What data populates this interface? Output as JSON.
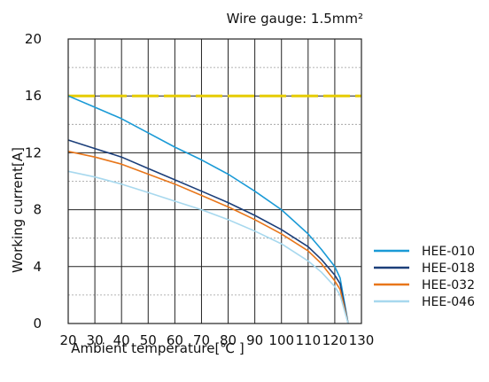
{
  "chart_data": {
    "type": "line",
    "title": "Wire gauge: 1.5mm²",
    "xlabel": "Ambient temperature[℃ ]",
    "ylabel": "Working current[A]",
    "xlim": [
      20,
      130
    ],
    "ylim": [
      0,
      20
    ],
    "xticks": [
      20,
      30,
      40,
      50,
      60,
      70,
      80,
      90,
      100,
      110,
      120,
      130
    ],
    "yticks": [
      0,
      4,
      8,
      12,
      16,
      20
    ],
    "grid": true,
    "legend_position": "right",
    "reference_line": {
      "y": 16,
      "color": "#e6cc00",
      "style": "dashed"
    },
    "series": [
      {
        "name": "HEE-010",
        "color": "#1a9ad6",
        "x": [
          20,
          30,
          40,
          50,
          60,
          70,
          80,
          90,
          100,
          110,
          115,
          120,
          122,
          125
        ],
        "y": [
          16.0,
          15.2,
          14.4,
          13.4,
          12.4,
          11.5,
          10.5,
          9.3,
          8.0,
          6.3,
          5.2,
          4.0,
          3.2,
          0
        ]
      },
      {
        "name": "HEE-018",
        "color": "#1c3f7a",
        "x": [
          20,
          30,
          40,
          50,
          60,
          70,
          80,
          90,
          100,
          110,
          115,
          120,
          122,
          125
        ],
        "y": [
          12.9,
          12.3,
          11.7,
          10.9,
          10.1,
          9.3,
          8.5,
          7.6,
          6.6,
          5.4,
          4.5,
          3.4,
          2.8,
          0
        ]
      },
      {
        "name": "HEE-032",
        "color": "#e8761a",
        "x": [
          20,
          30,
          40,
          50,
          60,
          70,
          80,
          90,
          100,
          110,
          115,
          120,
          122,
          125
        ],
        "y": [
          12.1,
          11.7,
          11.2,
          10.5,
          9.8,
          9.0,
          8.2,
          7.3,
          6.3,
          5.1,
          4.2,
          3.0,
          2.4,
          0
        ]
      },
      {
        "name": "HEE-046",
        "color": "#a7d8ee",
        "x": [
          20,
          30,
          40,
          50,
          60,
          70,
          80,
          90,
          100,
          110,
          115,
          120,
          122,
          125
        ],
        "y": [
          10.7,
          10.3,
          9.8,
          9.2,
          8.6,
          8.0,
          7.3,
          6.5,
          5.6,
          4.4,
          3.6,
          2.6,
          2.0,
          0
        ]
      }
    ]
  }
}
